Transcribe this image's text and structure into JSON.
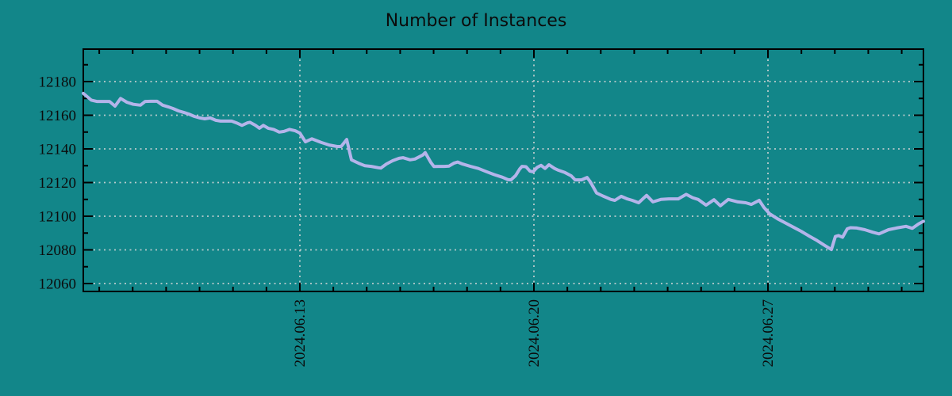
{
  "chart_data": {
    "type": "line",
    "title": "Number of Instances",
    "xlabel": "",
    "ylabel": "",
    "legend": "none",
    "grid": "dotted",
    "colors": {
      "background": "#128689",
      "line": "#b4b4ea",
      "grid": "#d8d8d8",
      "axis": "#000000",
      "text": "#0b0b0b"
    },
    "y_axis": {
      "range": [
        12055.3,
        12199.3
      ],
      "major_ticks": [
        12060,
        12080,
        12100,
        12120,
        12140,
        12160,
        12180
      ],
      "minor_ticks": [
        12070,
        12090,
        12110,
        12130,
        12150,
        12170,
        12190
      ],
      "tick_labels": [
        "12060",
        "12080",
        "12100",
        "12120",
        "12140",
        "12160",
        "12180"
      ]
    },
    "x_axis": {
      "range_days": [
        0,
        25.127
      ],
      "major_ticks": [
        {
          "label": "2024.06.13",
          "day": 6.477
        },
        {
          "label": "2024.06.20",
          "day": 13.477
        },
        {
          "label": "2024.06.27",
          "day": 20.477
        }
      ],
      "minor_tick_first_day": 0.477,
      "minor_tick_step_days": 1
    },
    "series": [
      {
        "name": "instances",
        "points": [
          [
            0.0,
            12173
          ],
          [
            0.119,
            12171
          ],
          [
            0.237,
            12169
          ],
          [
            0.403,
            12168.2
          ],
          [
            0.593,
            12168.2
          ],
          [
            0.783,
            12168.2
          ],
          [
            0.949,
            12165.4
          ],
          [
            1.115,
            12170
          ],
          [
            1.305,
            12167.7
          ],
          [
            1.495,
            12166.5
          ],
          [
            1.708,
            12166
          ],
          [
            1.851,
            12168.2
          ],
          [
            2.017,
            12168.3
          ],
          [
            2.207,
            12168.3
          ],
          [
            2.373,
            12166
          ],
          [
            2.539,
            12165
          ],
          [
            2.681,
            12164
          ],
          [
            2.847,
            12162.6
          ],
          [
            3.013,
            12161.6
          ],
          [
            3.156,
            12160.7
          ],
          [
            3.322,
            12159.3
          ],
          [
            3.488,
            12158.4
          ],
          [
            3.63,
            12157.9
          ],
          [
            3.796,
            12158.4
          ],
          [
            3.962,
            12157
          ],
          [
            4.105,
            12156.5
          ],
          [
            4.271,
            12156.5
          ],
          [
            4.437,
            12156.5
          ],
          [
            4.579,
            12155.5
          ],
          [
            4.745,
            12154
          ],
          [
            4.911,
            12155.5
          ],
          [
            4.983,
            12155.8
          ],
          [
            5.149,
            12154
          ],
          [
            5.267,
            12152.3
          ],
          [
            5.386,
            12154
          ],
          [
            5.528,
            12152.3
          ],
          [
            5.694,
            12151.6
          ],
          [
            5.861,
            12150
          ],
          [
            6.003,
            12150.4
          ],
          [
            6.169,
            12151.6
          ],
          [
            6.335,
            12150.8
          ],
          [
            6.477,
            12149.4
          ],
          [
            6.643,
            12144.2
          ],
          [
            6.833,
            12146
          ],
          [
            7.118,
            12143.8
          ],
          [
            7.355,
            12142.3
          ],
          [
            7.592,
            12141.4
          ],
          [
            7.711,
            12141.4
          ],
          [
            7.877,
            12145.6
          ],
          [
            8.019,
            12133.5
          ],
          [
            8.233,
            12131.5
          ],
          [
            8.423,
            12130
          ],
          [
            8.613,
            12129.6
          ],
          [
            8.826,
            12128.8
          ],
          [
            8.897,
            12128.6
          ],
          [
            9.063,
            12131
          ],
          [
            9.253,
            12133
          ],
          [
            9.443,
            12134.4
          ],
          [
            9.562,
            12134.8
          ],
          [
            9.775,
            12133.5
          ],
          [
            9.918,
            12134
          ],
          [
            10.155,
            12136.4
          ],
          [
            10.226,
            12137.8
          ],
          [
            10.392,
            12132
          ],
          [
            10.487,
            12129.5
          ],
          [
            10.63,
            12129.6
          ],
          [
            10.796,
            12129.6
          ],
          [
            10.938,
            12129.8
          ],
          [
            11.081,
            12131.5
          ],
          [
            11.199,
            12132.2
          ],
          [
            11.341,
            12131
          ],
          [
            11.579,
            12129.6
          ],
          [
            11.816,
            12128.4
          ],
          [
            12.054,
            12126.5
          ],
          [
            12.291,
            12124.7
          ],
          [
            12.528,
            12123.2
          ],
          [
            12.694,
            12121.8
          ],
          [
            12.789,
            12121.6
          ],
          [
            12.931,
            12124.2
          ],
          [
            13.05,
            12128
          ],
          [
            13.121,
            12129.6
          ],
          [
            13.24,
            12129.4
          ],
          [
            13.358,
            12126.8
          ],
          [
            13.453,
            12126.4
          ],
          [
            13.572,
            12129
          ],
          [
            13.69,
            12130.2
          ],
          [
            13.809,
            12128.4
          ],
          [
            13.928,
            12130.6
          ],
          [
            14.094,
            12128.4
          ],
          [
            14.189,
            12127.5
          ],
          [
            14.402,
            12126
          ],
          [
            14.592,
            12124
          ],
          [
            14.711,
            12121.6
          ],
          [
            14.901,
            12121.6
          ],
          [
            15.067,
            12123
          ],
          [
            15.162,
            12120.5
          ],
          [
            15.351,
            12113.8
          ],
          [
            15.541,
            12112
          ],
          [
            15.778,
            12110
          ],
          [
            15.897,
            12109.4
          ],
          [
            16.087,
            12111.8
          ],
          [
            16.253,
            12110.4
          ],
          [
            16.419,
            12109.4
          ],
          [
            16.609,
            12108
          ],
          [
            16.846,
            12112.4
          ],
          [
            17.036,
            12108.5
          ],
          [
            17.273,
            12110
          ],
          [
            17.51,
            12110.3
          ],
          [
            17.795,
            12110.3
          ],
          [
            18.033,
            12113
          ],
          [
            18.222,
            12111
          ],
          [
            18.388,
            12110
          ],
          [
            18.626,
            12106.6
          ],
          [
            18.863,
            12109.8
          ],
          [
            19.053,
            12106.2
          ],
          [
            19.29,
            12110
          ],
          [
            19.575,
            12108.5
          ],
          [
            19.812,
            12108
          ],
          [
            19.978,
            12107
          ],
          [
            20.215,
            12109.4
          ],
          [
            20.358,
            12105.2
          ],
          [
            20.524,
            12101.5
          ],
          [
            20.761,
            12098.5
          ],
          [
            20.998,
            12096
          ],
          [
            21.236,
            12093.5
          ],
          [
            21.473,
            12091
          ],
          [
            21.71,
            12088.2
          ],
          [
            21.947,
            12085.5
          ],
          [
            22.185,
            12082.5
          ],
          [
            22.374,
            12080.2
          ],
          [
            22.493,
            12088
          ],
          [
            22.588,
            12088.5
          ],
          [
            22.707,
            12087.5
          ],
          [
            22.849,
            12092.5
          ],
          [
            22.944,
            12093.2
          ],
          [
            23.134,
            12093
          ],
          [
            23.371,
            12092
          ],
          [
            23.608,
            12090.5
          ],
          [
            23.798,
            12089.5
          ],
          [
            24.083,
            12092
          ],
          [
            24.32,
            12093
          ],
          [
            24.605,
            12094
          ],
          [
            24.795,
            12092.8
          ],
          [
            24.984,
            12095.5
          ],
          [
            25.127,
            12097
          ]
        ]
      }
    ]
  }
}
